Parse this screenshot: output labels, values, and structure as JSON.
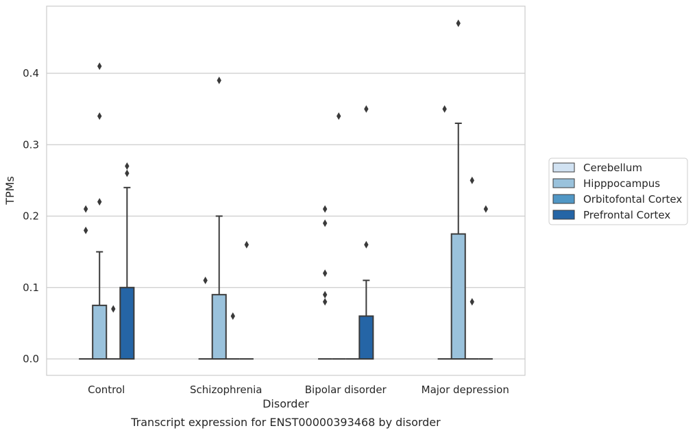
{
  "caption": "Transcript expression for ENST00000393468 by disorder",
  "chart_data": {
    "type": "box",
    "xlabel": "Disorder",
    "ylabel": "TPMs",
    "categories": [
      "Control",
      "Schizophrenia",
      "Bipolar disorder",
      "Major depression"
    ],
    "ylim": [
      -0.023,
      0.494
    ],
    "yticks": [
      0.0,
      0.1,
      0.2,
      0.3,
      0.4
    ],
    "ytick_labels": [
      "0.0",
      "0.1",
      "0.2",
      "0.3",
      "0.4"
    ],
    "grid": true,
    "legend_position": "right",
    "series": [
      {
        "name": "Cerebellum",
        "color": "#d1e2f2",
        "boxes": [
          {
            "q1": 0,
            "median": 0,
            "q3": 0,
            "whisker_low": 0,
            "whisker_high": 0,
            "outliers": [
              0.21,
              0.18
            ]
          },
          {
            "q1": 0,
            "median": 0,
            "q3": 0,
            "whisker_low": 0,
            "whisker_high": 0,
            "outliers": [
              0.11
            ]
          },
          {
            "q1": 0,
            "median": 0,
            "q3": 0,
            "whisker_low": 0,
            "whisker_high": 0,
            "outliers": [
              0.21,
              0.19,
              0.12,
              0.09,
              0.08
            ]
          },
          {
            "q1": 0,
            "median": 0,
            "q3": 0,
            "whisker_low": 0,
            "whisker_high": 0,
            "outliers": [
              0.35
            ]
          }
        ]
      },
      {
        "name": "Hipppocampus",
        "color": "#9ac2dc",
        "boxes": [
          {
            "q1": 0,
            "median": 0,
            "q3": 0.075,
            "whisker_low": 0,
            "whisker_high": 0.15,
            "outliers": [
              0.41,
              0.34,
              0.22
            ]
          },
          {
            "q1": 0,
            "median": 0,
            "q3": 0.09,
            "whisker_low": 0,
            "whisker_high": 0.2,
            "outliers": [
              0.39
            ]
          },
          {
            "q1": 0,
            "median": 0,
            "q3": 0,
            "whisker_low": 0,
            "whisker_high": 0,
            "outliers": [
              0.34
            ]
          },
          {
            "q1": 0,
            "median": 0,
            "q3": 0.175,
            "whisker_low": 0,
            "whisker_high": 0.33,
            "outliers": [
              0.47
            ]
          }
        ]
      },
      {
        "name": "Orbitofontal Cortex",
        "color": "#5197c5",
        "boxes": [
          {
            "q1": 0,
            "median": 0,
            "q3": 0,
            "whisker_low": 0,
            "whisker_high": 0,
            "outliers": [
              0.07
            ]
          },
          {
            "q1": 0,
            "median": 0,
            "q3": 0,
            "whisker_low": 0,
            "whisker_high": 0,
            "outliers": [
              0.06
            ]
          },
          {
            "q1": 0,
            "median": 0,
            "q3": 0,
            "whisker_low": 0,
            "whisker_high": 0,
            "outliers": []
          },
          {
            "q1": 0,
            "median": 0,
            "q3": 0,
            "whisker_low": 0,
            "whisker_high": 0,
            "outliers": [
              0.25,
              0.08
            ]
          }
        ]
      },
      {
        "name": "Prefrontal Cortex",
        "color": "#2565a6",
        "boxes": [
          {
            "q1": 0,
            "median": 0,
            "q3": 0.1,
            "whisker_low": 0,
            "whisker_high": 0.24,
            "outliers": [
              0.27,
              0.26
            ]
          },
          {
            "q1": 0,
            "median": 0,
            "q3": 0,
            "whisker_low": 0,
            "whisker_high": 0,
            "outliers": [
              0.16
            ]
          },
          {
            "q1": 0,
            "median": 0,
            "q3": 0.06,
            "whisker_low": 0,
            "whisker_high": 0.11,
            "outliers": [
              0.35,
              0.16
            ]
          },
          {
            "q1": 0,
            "median": 0,
            "q3": 0,
            "whisker_low": 0,
            "whisker_high": 0,
            "outliers": [
              0.21
            ]
          }
        ]
      }
    ]
  }
}
